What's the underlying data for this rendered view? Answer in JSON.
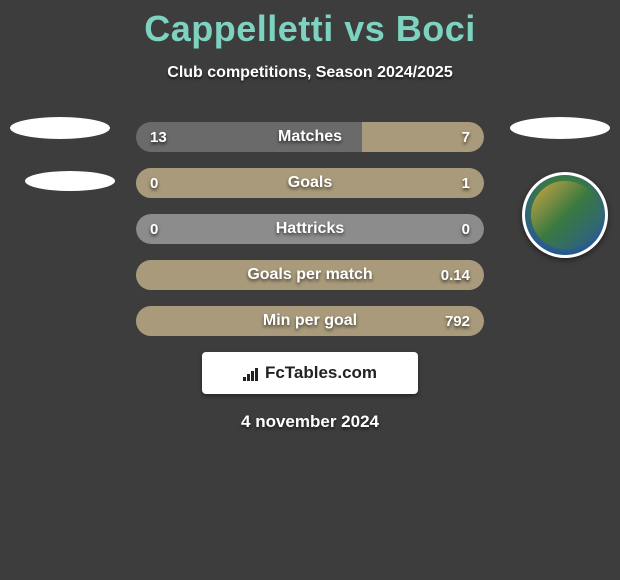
{
  "title": "Cappelletti vs Boci",
  "subtitle": "Club competitions, Season 2024/2025",
  "date": "4 november 2024",
  "brand": "FcTables.com",
  "colors": {
    "title": "#7dd3c0",
    "background": "#3d3d3d",
    "left_fill": "#6a6a6a",
    "right_fill": "#a89a7a",
    "neutral_fill": "#8c8c8c",
    "text": "#ffffff"
  },
  "stats": [
    {
      "label": "Matches",
      "left_val": "13",
      "right_val": "7",
      "left_pct": 65,
      "right_pct": 35,
      "left_color": "#6a6a6a",
      "right_color": "#a89a7a",
      "bg_color": "#6a6a6a"
    },
    {
      "label": "Goals",
      "left_val": "0",
      "right_val": "1",
      "left_pct": 0,
      "right_pct": 100,
      "left_color": "#6a6a6a",
      "right_color": "#a89a7a",
      "bg_color": "#a89a7a"
    },
    {
      "label": "Hattricks",
      "left_val": "0",
      "right_val": "0",
      "left_pct": 0,
      "right_pct": 0,
      "left_color": "#8c8c8c",
      "right_color": "#8c8c8c",
      "bg_color": "#8c8c8c"
    },
    {
      "label": "Goals per match",
      "left_val": "",
      "right_val": "0.14",
      "left_pct": 0,
      "right_pct": 100,
      "left_color": "#6a6a6a",
      "right_color": "#a89a7a",
      "bg_color": "#a89a7a"
    },
    {
      "label": "Min per goal",
      "left_val": "",
      "right_val": "792",
      "left_pct": 0,
      "right_pct": 100,
      "left_color": "#6a6a6a",
      "right_color": "#a89a7a",
      "bg_color": "#a89a7a"
    }
  ]
}
